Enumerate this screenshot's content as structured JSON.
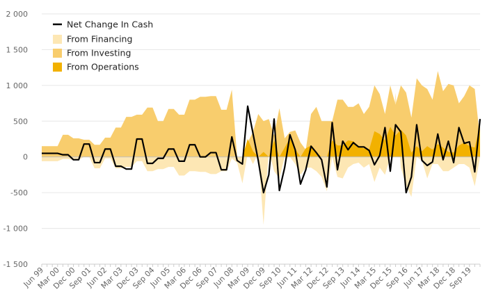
{
  "chart_data": {
    "type": "area",
    "title": "",
    "xlabel": "",
    "ylabel": "",
    "ylim": [
      -1500,
      2000
    ],
    "yticks": [
      -1500,
      -1000,
      -500,
      0,
      500,
      1000,
      1500,
      2000
    ],
    "ytick_labels": [
      "-1 500",
      "-1 000",
      "-500",
      "0",
      "500",
      "1 000",
      "1 500",
      "2 000"
    ],
    "xtick_labels": [
      "Jun 99",
      "Mar 00",
      "Dec 00",
      "Sep 01",
      "Jun 02",
      "Mar 03",
      "Dec 03",
      "Sep 04",
      "Jun 05",
      "Mar 06",
      "Dec 06",
      "Sep 07",
      "Jun 08",
      "Mar 09",
      "Dec 09",
      "Sep 10",
      "Jun 11",
      "Mar 12",
      "Dec 12",
      "Sep 13",
      "Jun 14",
      "Mar 15",
      "Dec 15",
      "Sep 16",
      "Jun 17",
      "Mar 18",
      "Dec 18",
      "Sep 19"
    ],
    "grid": "horizontal",
    "legend_position": "top-left",
    "colors": {
      "net_change": "#000000",
      "financing": "#fde7b4",
      "investing": "#f8cd6d",
      "operations": "#f2b100"
    },
    "series": [
      {
        "name": "Net Change In Cash",
        "type": "line",
        "values": [
          50,
          50,
          50,
          50,
          30,
          30,
          -40,
          -40,
          180,
          180,
          -80,
          -80,
          110,
          110,
          -130,
          -130,
          -170,
          -170,
          250,
          250,
          -90,
          -90,
          -20,
          -20,
          110,
          110,
          -60,
          -60,
          170,
          170,
          0,
          0,
          60,
          60,
          -180,
          -180,
          280,
          -50,
          -100,
          710,
          330,
          -50,
          -500,
          -250,
          530,
          -470,
          -150,
          310,
          100,
          -380,
          -180,
          150,
          60,
          -40,
          -420,
          480,
          -180,
          220,
          100,
          200,
          140,
          140,
          90,
          -110,
          20,
          410,
          -200,
          450,
          350,
          -500,
          -280,
          450,
          -50,
          -120,
          -70,
          320,
          -40,
          220,
          -80,
          410,
          190,
          210,
          -210,
          530
        ]
      },
      {
        "name": "From Financing",
        "type": "area",
        "values": [
          -60,
          -60,
          -60,
          -60,
          -30,
          -30,
          -40,
          -40,
          0,
          0,
          -160,
          -160,
          -20,
          -20,
          -160,
          -160,
          -140,
          -140,
          -60,
          -60,
          -200,
          -200,
          -170,
          -170,
          -140,
          -140,
          -260,
          -260,
          -200,
          -200,
          -210,
          -210,
          -240,
          -240,
          -200,
          -200,
          -20,
          -80,
          -370,
          50,
          -100,
          50,
          -950,
          100,
          -200,
          -300,
          0,
          0,
          -100,
          -250,
          -150,
          -150,
          -200,
          -280,
          -480,
          0,
          -280,
          -300,
          -150,
          -100,
          -80,
          -150,
          -100,
          -350,
          -150,
          -250,
          0,
          900,
          -150,
          -400,
          -560,
          0,
          -50,
          -300,
          -100,
          -100,
          -200,
          -200,
          -150,
          -100,
          -100,
          -150,
          -410,
          0
        ]
      },
      {
        "name": "From Investing",
        "type": "area",
        "values": [
          150,
          150,
          150,
          150,
          310,
          310,
          260,
          260,
          240,
          240,
          170,
          170,
          270,
          270,
          410,
          410,
          560,
          560,
          590,
          590,
          690,
          690,
          500,
          500,
          670,
          670,
          590,
          590,
          800,
          800,
          840,
          840,
          850,
          850,
          660,
          660,
          940,
          0,
          0,
          200,
          350,
          600,
          500,
          530,
          300,
          680,
          260,
          350,
          370,
          200,
          100,
          600,
          700,
          500,
          500,
          500,
          800,
          800,
          700,
          700,
          750,
          600,
          700,
          1000,
          880,
          600,
          1000,
          730,
          1000,
          900,
          550,
          1100,
          1000,
          950,
          800,
          1200,
          920,
          1020,
          1000,
          750,
          850,
          1000,
          950,
          250
        ]
      },
      {
        "name": "From Operations",
        "type": "area",
        "values": [
          0,
          0,
          0,
          0,
          0,
          0,
          0,
          0,
          0,
          0,
          0,
          0,
          0,
          0,
          0,
          0,
          0,
          0,
          0,
          0,
          0,
          0,
          0,
          0,
          0,
          0,
          0,
          0,
          0,
          0,
          0,
          0,
          0,
          0,
          0,
          0,
          0,
          0,
          0,
          250,
          80,
          0,
          70,
          0,
          230,
          0,
          130,
          260,
          110,
          0,
          120,
          160,
          60,
          0,
          0,
          230,
          160,
          160,
          230,
          220,
          140,
          120,
          100,
          360,
          320,
          230,
          420,
          300,
          380,
          300,
          60,
          150,
          80,
          150,
          100,
          180,
          130,
          70,
          60,
          160,
          200,
          150,
          130,
          450
        ]
      }
    ]
  }
}
